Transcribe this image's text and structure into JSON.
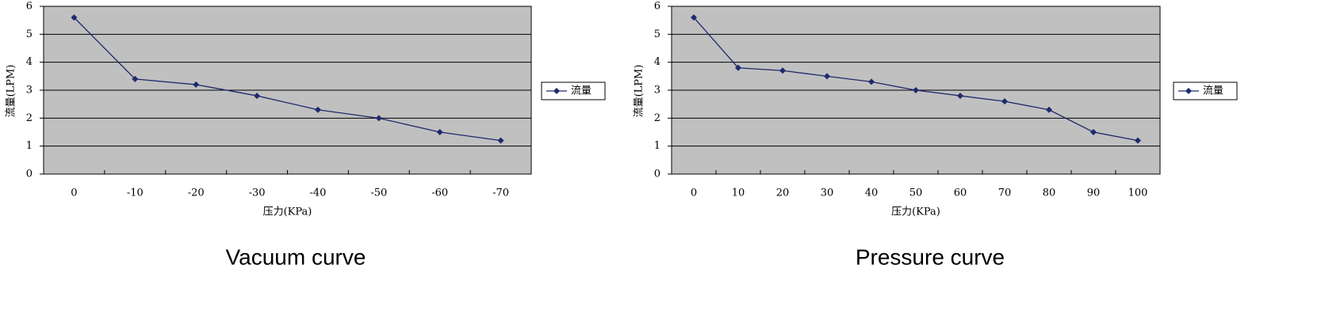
{
  "chart_data": [
    {
      "type": "line",
      "caption": "Vacuum curve",
      "xlabel": "压力(KPa)",
      "ylabel": "流量(LPM)",
      "categories": [
        "0",
        "-10",
        "-20",
        "-30",
        "-40",
        "-50",
        "-60",
        "-70"
      ],
      "series": [
        {
          "name": "流量",
          "color": "#1f2a6b",
          "values": [
            5.6,
            3.4,
            3.2,
            2.8,
            2.3,
            2.0,
            1.5,
            1.2
          ]
        }
      ],
      "ylim": [
        0,
        6
      ],
      "yticks": [
        0,
        1,
        2,
        3,
        4,
        5,
        6
      ],
      "grid": true,
      "legend": "right"
    },
    {
      "type": "line",
      "caption": "Pressure curve",
      "xlabel": "压力(KPa)",
      "ylabel": "流量(LPM)",
      "categories": [
        "0",
        "10",
        "20",
        "30",
        "40",
        "50",
        "60",
        "70",
        "80",
        "90",
        "100"
      ],
      "series": [
        {
          "name": "流量",
          "color": "#1f2a6b",
          "values": [
            5.6,
            3.8,
            3.7,
            3.5,
            3.3,
            3.0,
            2.8,
            2.6,
            2.3,
            1.5,
            1.2
          ]
        }
      ],
      "ylim": [
        0,
        6
      ],
      "yticks": [
        0,
        1,
        2,
        3,
        4,
        5,
        6
      ],
      "grid": true,
      "legend": "right"
    }
  ]
}
